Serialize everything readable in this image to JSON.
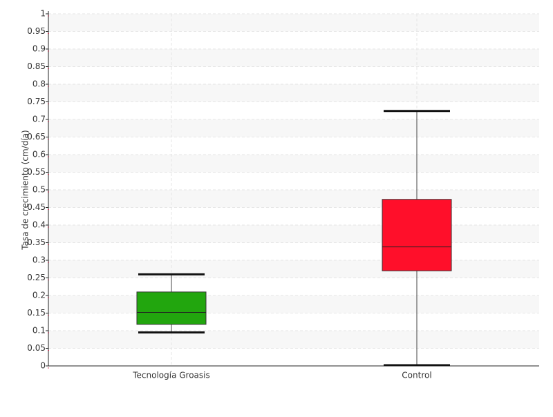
{
  "chart_data": {
    "type": "boxplot",
    "ylabel": "Tasa de crecimiento (cm/día)",
    "xlabel": "",
    "title": "",
    "ylim": [
      0,
      1
    ],
    "yticks": [
      0,
      0.05,
      0.1,
      0.15,
      0.2,
      0.25,
      0.3,
      0.35,
      0.4,
      0.45,
      0.5,
      0.55,
      0.6,
      0.65,
      0.7,
      0.75,
      0.8,
      0.85,
      0.9,
      0.95,
      1
    ],
    "ytick_labels": [
      "0",
      "0.05",
      "0.1",
      "0.15",
      "0.2",
      "0.25",
      "0.3",
      "0.35",
      "0.4",
      "0.45",
      "0.5",
      "0.55",
      "0.6",
      "0.65",
      "0.7",
      "0.75",
      "0.8",
      "0.85",
      "0.9",
      "0.95",
      "1"
    ],
    "grid": true,
    "categories": [
      "Tecnología Groasis",
      "Control"
    ],
    "boxes": [
      {
        "category": "Tecnología Groasis",
        "whisker_low": 0.095,
        "q1": 0.118,
        "median": 0.152,
        "q3": 0.21,
        "whisker_high": 0.26,
        "color": "#22a60e"
      },
      {
        "category": "Control",
        "whisker_low": 0.002,
        "q1": 0.27,
        "median": 0.338,
        "q3": 0.473,
        "whisker_high": 0.724,
        "color": "#ff0f2a"
      }
    ]
  }
}
